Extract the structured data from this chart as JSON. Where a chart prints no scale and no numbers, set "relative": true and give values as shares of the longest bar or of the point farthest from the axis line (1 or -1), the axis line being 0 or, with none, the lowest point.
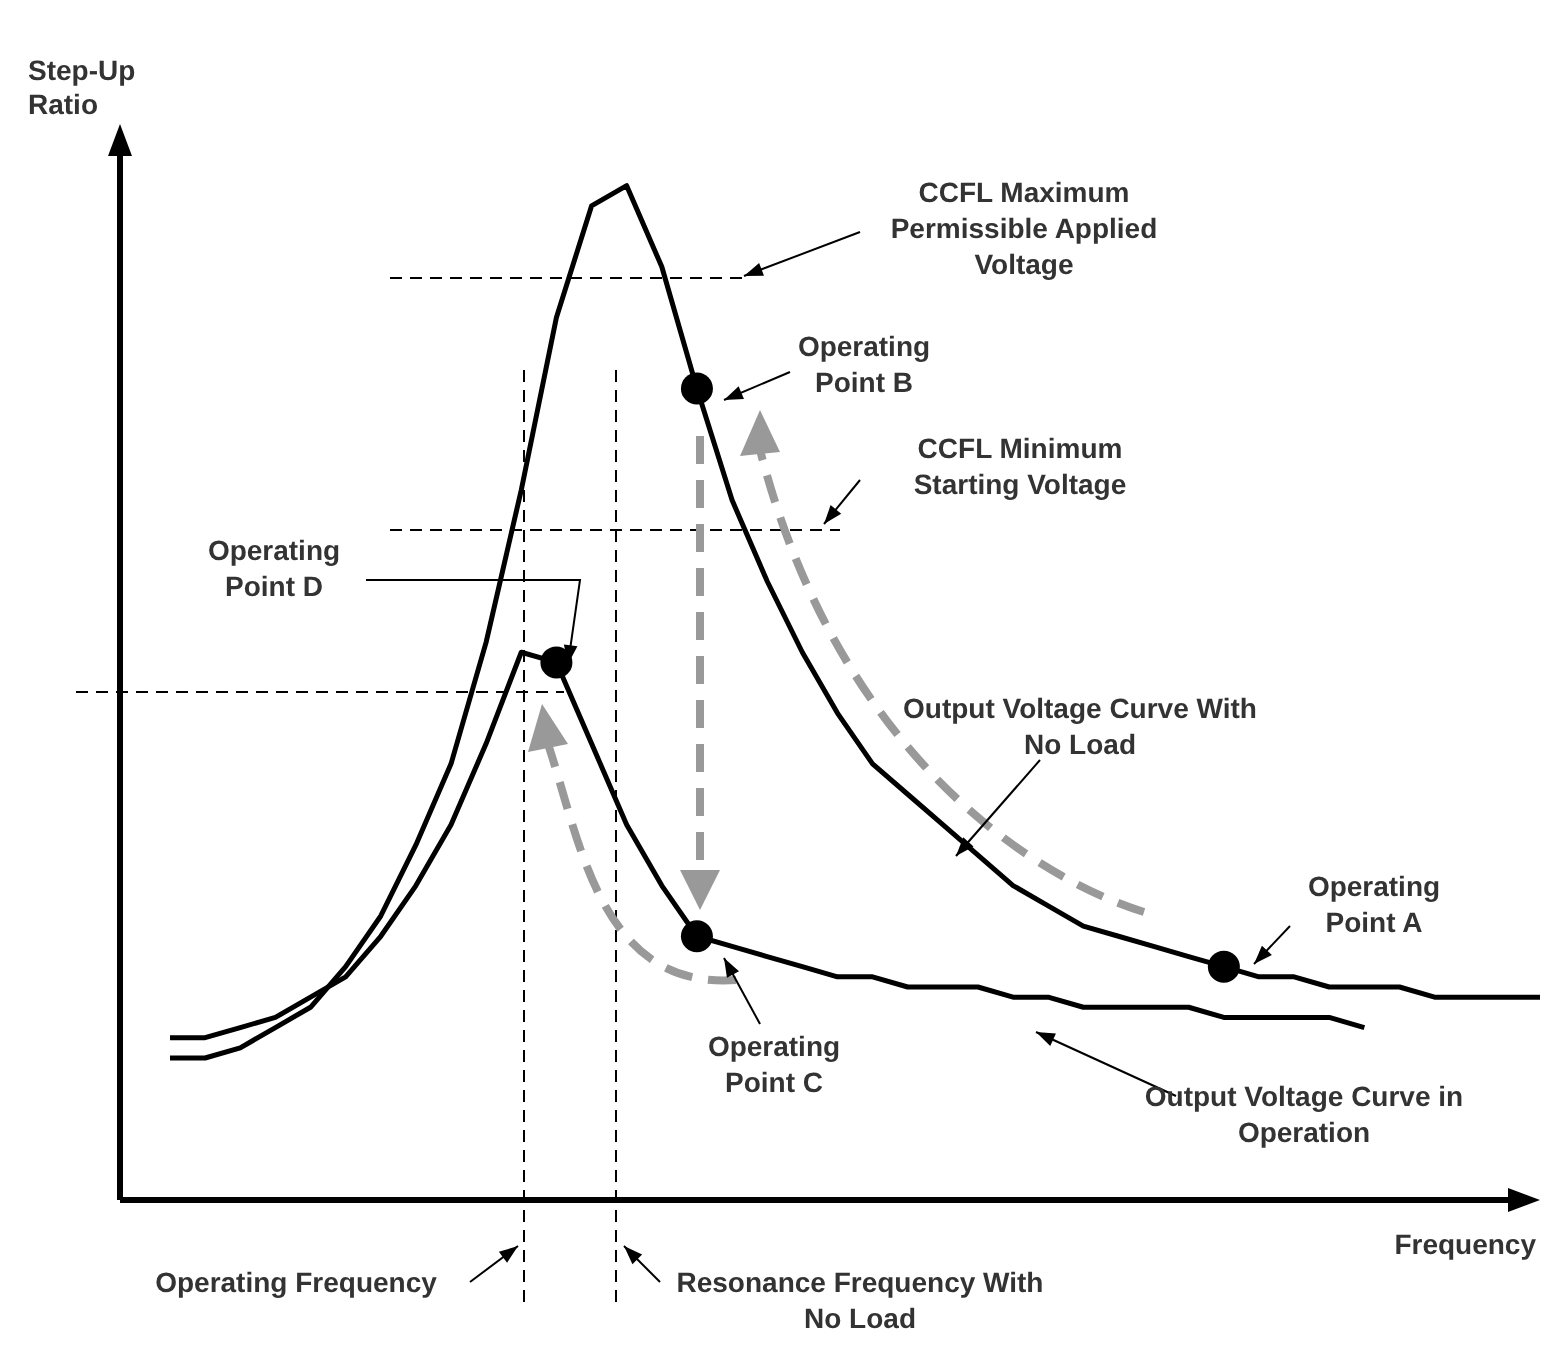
{
  "chart_data": {
    "type": "line",
    "relative": true,
    "xlabel": "Frequency",
    "ylabel": "Step-Up Ratio",
    "categories": [
      null,
      null,
      null,
      null,
      null,
      null,
      null,
      null,
      null,
      null,
      null,
      null,
      null,
      null,
      null,
      null,
      null,
      null,
      null,
      null,
      null,
      null,
      null,
      null,
      null,
      null,
      null,
      null,
      null,
      null,
      null,
      null,
      null,
      null,
      null,
      null,
      null,
      null,
      null,
      null
    ],
    "series": [
      {
        "name": "Output Voltage Curve With No Load",
        "color": "#000000",
        "values": [
          0.14,
          0.14,
          0.15,
          0.17,
          0.19,
          0.23,
          0.28,
          0.35,
          0.43,
          0.55,
          0.7,
          0.87,
          0.98,
          1.0,
          0.92,
          0.8,
          0.69,
          0.61,
          0.54,
          0.48,
          0.43,
          0.4,
          0.37,
          0.34,
          0.31,
          0.29,
          0.27,
          0.26,
          0.25,
          0.24,
          0.23,
          0.22,
          0.22,
          0.21,
          0.21,
          0.21,
          0.2,
          0.2,
          0.2,
          0.2
        ]
      },
      {
        "name": "Output Voltage Curve in Operation",
        "color": "#000000",
        "values": [
          0.16,
          0.16,
          0.17,
          0.18,
          0.2,
          0.22,
          0.26,
          0.31,
          0.37,
          0.45,
          0.54,
          0.53,
          0.45,
          0.37,
          0.31,
          0.26,
          0.25,
          0.24,
          0.23,
          0.22,
          0.22,
          0.21,
          0.21,
          0.21,
          0.2,
          0.2,
          0.19,
          0.19,
          0.19,
          0.19,
          0.18,
          0.18,
          0.18,
          0.18,
          0.17,
          null,
          null,
          null,
          null,
          null
        ]
      }
    ],
    "annotations": [
      "CCFL Maximum Permissible Applied Voltage",
      "CCFL Minimum Starting Voltage",
      "Operating Frequency",
      "Resonance Frequency With No Load",
      "Operating Point B",
      "Operating Point D",
      "Operating Point A",
      "Operating Point C"
    ]
  }
}
